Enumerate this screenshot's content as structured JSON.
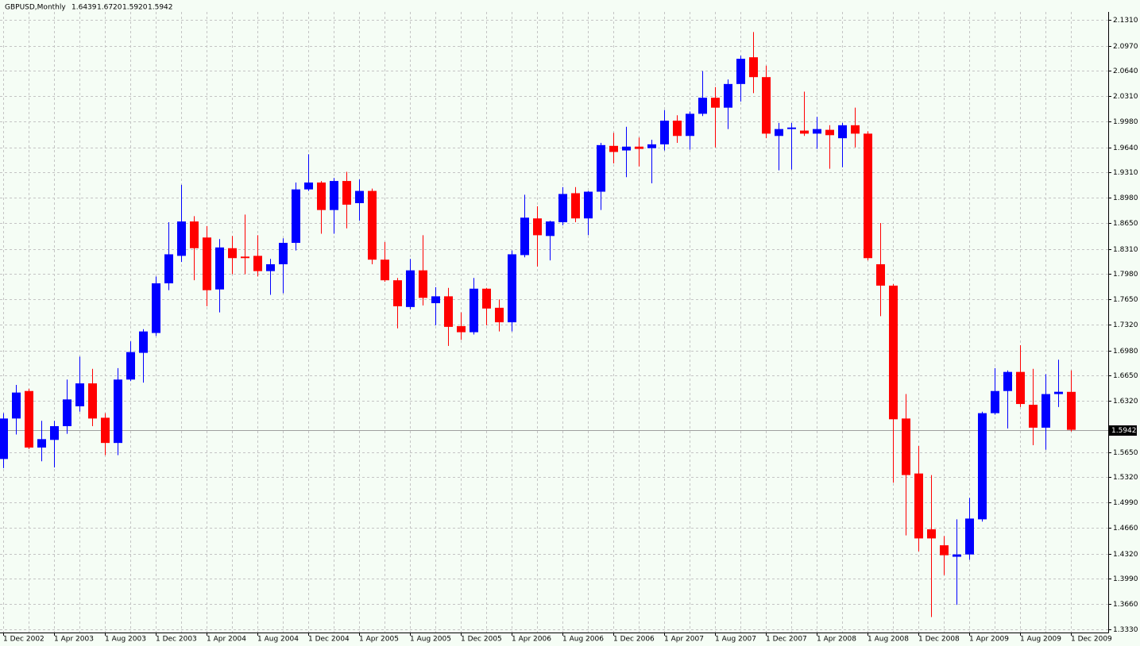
{
  "chart_data": {
    "type": "candlestick",
    "title": "GBPUSD,Monthly",
    "x": [
      "1 Dec 2002",
      null,
      null,
      null,
      "1 Apr 2003",
      null,
      null,
      null,
      "1 Aug 2003",
      null,
      null,
      null,
      "1 Dec 2003",
      null,
      null,
      null,
      "1 Apr 2004",
      null,
      null,
      null,
      "1 Aug 2004",
      null,
      null,
      null,
      "1 Dec 2004",
      null,
      null,
      null,
      "1 Apr 2005",
      null,
      null,
      null,
      "1 Aug 2005",
      null,
      null,
      null,
      "1 Dec 2005",
      null,
      null,
      null,
      "1 Apr 2006",
      null,
      null,
      null,
      "1 Aug 2006",
      null,
      null,
      null,
      "1 Dec 2006",
      null,
      null,
      null,
      "1 Apr 2007",
      null,
      null,
      null,
      "1 Aug 2007",
      null,
      null,
      null,
      "1 Dec 2007",
      null,
      null,
      null,
      "1 Apr 2008",
      null,
      null,
      null,
      "1 Aug 2008",
      null,
      null,
      null,
      "1 Dec 2008",
      null,
      null,
      null,
      "1 Apr 2009",
      null,
      null,
      null,
      "1 Aug 2009",
      null,
      null,
      null,
      "1 Dec 2009"
    ],
    "open": [
      1.556,
      1.609,
      1.645,
      1.571,
      1.581,
      1.599,
      1.625,
      1.655,
      1.61,
      1.577,
      1.66,
      1.695,
      1.721,
      1.786,
      1.822,
      1.867,
      1.846,
      1.778,
      1.832,
      1.821,
      1.822,
      1.802,
      1.811,
      1.839,
      1.909,
      1.918,
      1.882,
      1.92,
      1.891,
      1.907,
      1.817,
      1.79,
      1.755,
      1.803,
      1.76,
      1.769,
      1.73,
      1.722,
      1.779,
      1.754,
      1.735,
      1.823,
      1.871,
      1.848,
      1.866,
      1.904,
      1.871,
      1.906,
      1.966,
      1.96,
      1.965,
      1.963,
      1.968,
      1.999,
      1.979,
      2.008,
      2.029,
      2.016,
      2.047,
      2.082,
      2.056,
      1.979,
      1.988,
      1.986,
      1.982,
      1.987,
      1.976,
      1.993,
      1.982,
      1.811,
      1.783,
      1.609,
      1.537,
      1.464,
      1.443,
      1.428,
      1.431,
      1.477,
      1.616,
      1.645,
      1.67,
      1.627,
      1.597,
      1.641,
      1.6439
    ],
    "high": [
      1.616,
      1.653,
      1.648,
      1.606,
      1.606,
      1.66,
      1.69,
      1.674,
      1.616,
      1.675,
      1.71,
      1.726,
      1.795,
      1.866,
      1.915,
      1.874,
      1.861,
      1.844,
      1.848,
      1.876,
      1.849,
      1.818,
      1.845,
      1.918,
      1.955,
      1.92,
      1.924,
      1.932,
      1.922,
      1.91,
      1.84,
      1.793,
      1.818,
      1.849,
      1.781,
      1.78,
      1.748,
      1.793,
      1.78,
      1.765,
      1.829,
      1.902,
      1.887,
      1.868,
      1.912,
      1.912,
      1.907,
      1.97,
      1.983,
      1.991,
      1.977,
      1.974,
      2.013,
      2.006,
      2.011,
      2.064,
      2.043,
      2.053,
      2.084,
      2.115,
      2.071,
      1.996,
      1.996,
      2.037,
      2.004,
      1.993,
      1.996,
      2.016,
      1.985,
      1.865,
      1.785,
      1.641,
      1.573,
      1.535,
      1.455,
      1.477,
      1.505,
      1.618,
      1.675,
      1.672,
      1.705,
      1.674,
      1.667,
      1.686,
      1.672
    ],
    "low": [
      1.544,
      1.588,
      1.569,
      1.553,
      1.545,
      1.589,
      1.618,
      1.599,
      1.561,
      1.561,
      1.658,
      1.656,
      1.717,
      1.777,
      1.814,
      1.79,
      1.756,
      1.748,
      1.798,
      1.798,
      1.795,
      1.771,
      1.773,
      1.829,
      1.907,
      1.851,
      1.851,
      1.858,
      1.868,
      1.811,
      1.788,
      1.727,
      1.752,
      1.757,
      1.731,
      1.704,
      1.712,
      1.719,
      1.731,
      1.723,
      1.723,
      1.82,
      1.808,
      1.816,
      1.862,
      1.866,
      1.849,
      1.882,
      1.943,
      1.925,
      1.939,
      1.917,
      1.96,
      1.97,
      1.961,
      2.005,
      1.964,
      1.988,
      2.024,
      2.035,
      1.976,
      1.934,
      1.935,
      1.979,
      1.962,
      1.936,
      1.938,
      1.964,
      1.816,
      1.743,
      1.525,
      1.456,
      1.435,
      1.349,
      1.404,
      1.365,
      1.424,
      1.474,
      1.614,
      1.596,
      1.624,
      1.574,
      1.568,
      1.624,
      1.592
    ],
    "close": [
      1.609,
      1.643,
      1.571,
      1.582,
      1.599,
      1.634,
      1.655,
      1.609,
      1.577,
      1.66,
      1.696,
      1.723,
      1.786,
      1.824,
      1.867,
      1.832,
      1.777,
      1.833,
      1.819,
      1.819,
      1.802,
      1.811,
      1.839,
      1.909,
      1.918,
      1.882,
      1.92,
      1.889,
      1.907,
      1.817,
      1.79,
      1.756,
      1.803,
      1.767,
      1.769,
      1.729,
      1.722,
      1.779,
      1.753,
      1.735,
      1.824,
      1.872,
      1.849,
      1.867,
      1.903,
      1.871,
      1.906,
      1.967,
      1.958,
      1.965,
      1.962,
      1.968,
      1.999,
      1.979,
      2.008,
      2.029,
      2.016,
      2.047,
      2.08,
      2.056,
      1.982,
      1.988,
      1.99,
      1.982,
      1.988,
      1.98,
      1.993,
      1.982,
      1.819,
      1.783,
      1.608,
      1.535,
      1.452,
      1.452,
      1.43,
      1.431,
      1.478,
      1.616,
      1.645,
      1.67,
      1.628,
      1.597,
      1.641,
      1.644,
      1.5942
    ],
    "up_color": "#0000ff",
    "down_color": "#ff0000",
    "last_bar": {
      "values": [
        1.6439,
        1.672,
        1.592,
        1.5942
      ],
      "value_labels": [
        "1.6439",
        "1.6720",
        "1.5920",
        "1.5942"
      ]
    },
    "ylim": [
      1.3288,
      2.1414
    ],
    "yticks": [
      {
        "value": 2.131,
        "label": "2.1310"
      },
      {
        "value": 2.097,
        "label": "2.0970"
      },
      {
        "value": 2.064,
        "label": "2.0640"
      },
      {
        "value": 2.031,
        "label": "2.0310"
      },
      {
        "value": 1.998,
        "label": "1.9980"
      },
      {
        "value": 1.964,
        "label": "1.9640"
      },
      {
        "value": 1.931,
        "label": "1.9310"
      },
      {
        "value": 1.898,
        "label": "1.8980"
      },
      {
        "value": 1.865,
        "label": "1.8650"
      },
      {
        "value": 1.831,
        "label": "1.8310"
      },
      {
        "value": 1.798,
        "label": "1.7980"
      },
      {
        "value": 1.765,
        "label": "1.7650"
      },
      {
        "value": 1.732,
        "label": "1.7320"
      },
      {
        "value": 1.698,
        "label": "1.6980"
      },
      {
        "value": 1.665,
        "label": "1.6650"
      },
      {
        "value": 1.632,
        "label": "1.6320"
      },
      {
        "value": 1.565,
        "label": "1.5650"
      },
      {
        "value": 1.532,
        "label": "1.5320"
      },
      {
        "value": 1.499,
        "label": "1.4990"
      },
      {
        "value": 1.466,
        "label": "1.4660"
      },
      {
        "value": 1.432,
        "label": "1.4320"
      },
      {
        "value": 1.399,
        "label": "1.3990"
      },
      {
        "value": 1.366,
        "label": "1.3660"
      },
      {
        "value": 1.333,
        "label": "1.3330"
      }
    ],
    "grid": true
  }
}
